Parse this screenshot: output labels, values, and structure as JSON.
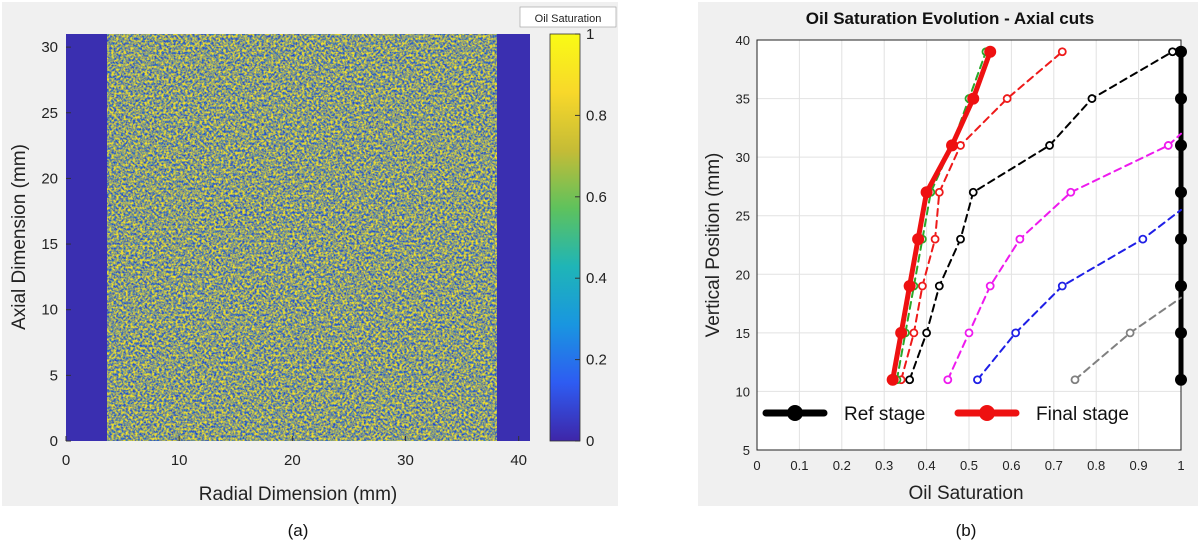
{
  "caption_a": "(a)",
  "caption_b": "(b)",
  "chart_data": [
    {
      "type": "heatmap",
      "title": "",
      "colorbar_label": "Oil Saturation",
      "xlabel": "Radial Dimension (mm)",
      "ylabel": "Axial Dimension (mm)",
      "xlim": [
        0,
        41
      ],
      "ylim": [
        0,
        31
      ],
      "x_ticks": [
        "0",
        "10",
        "20",
        "30",
        "40"
      ],
      "y_ticks": [
        "0",
        "5",
        "10",
        "15",
        "20",
        "25",
        "30"
      ],
      "colorbar_ticks": [
        "0",
        "0.2",
        "0.4",
        "0.6",
        "0.8",
        "1"
      ],
      "clim": [
        0,
        1
      ],
      "colormap": [
        "#3e26a8",
        "#2e5cf2",
        "#1996e0",
        "#1fb5b7",
        "#5ec25d",
        "#c5bc36",
        "#f8d82a",
        "#f9fb15"
      ]
    },
    {
      "type": "line",
      "title": "Oil Saturation Evolution - Axial cuts",
      "xlabel": "Oil Saturation",
      "ylabel": "Vertical Position (mm)",
      "xlim": [
        0,
        1
      ],
      "ylim": [
        5,
        40
      ],
      "x_ticks": [
        "0",
        "0.1",
        "0.2",
        "0.3",
        "0.4",
        "0.5",
        "0.6",
        "0.7",
        "0.8",
        "0.9",
        "1"
      ],
      "y_ticks": [
        "5",
        "10",
        "15",
        "20",
        "25",
        "30",
        "35",
        "40"
      ],
      "grid": true,
      "legend_position": "bottom",
      "legend": [
        "Ref stage",
        "Final stage"
      ],
      "series": [
        {
          "name": "Ref stage",
          "color": "#000000",
          "style": "solid",
          "width": 5,
          "x": [
            1,
            1,
            1,
            1,
            1,
            1,
            1,
            1
          ],
          "y": [
            11,
            15,
            19,
            23,
            27,
            31,
            35,
            39
          ]
        },
        {
          "color": "#808080",
          "style": "dashed",
          "width": 2,
          "x": [
            0.75,
            0.88,
            1.0
          ],
          "y": [
            11,
            15,
            18
          ]
        },
        {
          "color": "#1f1fe6",
          "style": "dashed",
          "width": 2,
          "x": [
            0.52,
            0.61,
            0.72,
            0.91,
            1.0
          ],
          "y": [
            11,
            15,
            19,
            23,
            25.5
          ]
        },
        {
          "color": "#ee1aee",
          "style": "dashed",
          "width": 2,
          "x": [
            0.45,
            0.5,
            0.55,
            0.62,
            0.74,
            0.97,
            1.0
          ],
          "y": [
            11,
            15,
            19,
            23,
            27,
            31,
            32
          ]
        },
        {
          "color": "#000000",
          "style": "dashed",
          "width": 2,
          "x": [
            0.36,
            0.4,
            0.43,
            0.48,
            0.51,
            0.69,
            0.79,
            0.98,
            1.0
          ],
          "y": [
            11,
            15,
            19,
            23,
            27,
            31,
            35,
            39,
            39.5
          ]
        },
        {
          "color": "#ee1a1a",
          "style": "dashed",
          "width": 2,
          "x": [
            0.34,
            0.37,
            0.39,
            0.42,
            0.43,
            0.48,
            0.59,
            0.72
          ],
          "y": [
            11,
            15,
            19,
            23,
            27,
            31,
            35,
            39
          ]
        },
        {
          "color": "#2aa82a",
          "style": "dashed",
          "width": 2,
          "x": [
            0.33,
            0.35,
            0.37,
            0.39,
            0.41,
            0.46,
            0.5,
            0.54
          ],
          "y": [
            11,
            15,
            19,
            23,
            27,
            31,
            35,
            39
          ]
        },
        {
          "name": "Final stage",
          "color": "#ee1111",
          "style": "solid",
          "width": 5,
          "x": [
            0.32,
            0.34,
            0.36,
            0.38,
            0.4,
            0.46,
            0.51,
            0.55
          ],
          "y": [
            11,
            15,
            19,
            23,
            27,
            31,
            35,
            39
          ]
        }
      ]
    }
  ]
}
